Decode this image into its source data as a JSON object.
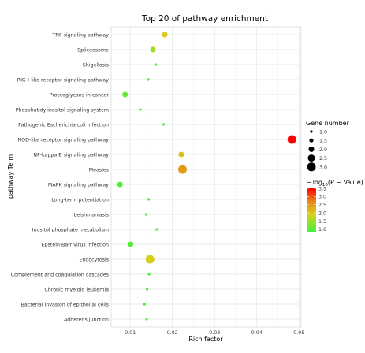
{
  "chart_data": {
    "type": "scatter",
    "title": "Top 20 of pathway enrichment",
    "xlabel": "Rich factor",
    "ylabel": "pathway Term",
    "xlim": [
      0.0055,
      0.0505
    ],
    "x_ticks": [
      "0.01",
      "0.02",
      "0.03",
      "0.04",
      "0.05"
    ],
    "x_tick_values": [
      0.01,
      0.02,
      0.03,
      0.04,
      0.05
    ],
    "grid": true,
    "points": [
      {
        "term": "TNF signaling pathway",
        "rich_factor": 0.0182,
        "gene_number": 2,
        "neg_log10_p": 2.0
      },
      {
        "term": "Spliceosome",
        "rich_factor": 0.0154,
        "gene_number": 2,
        "neg_log10_p": 1.5
      },
      {
        "term": "Shigellosis",
        "rich_factor": 0.0161,
        "gene_number": 1,
        "neg_log10_p": 0.9
      },
      {
        "term": "RIG-I-like receptor signaling pathway",
        "rich_factor": 0.0143,
        "gene_number": 1,
        "neg_log10_p": 0.85
      },
      {
        "term": "Proteoglycans in cancer",
        "rich_factor": 0.0088,
        "gene_number": 2,
        "neg_log10_p": 1.1
      },
      {
        "term": "Phosphatidylinositol signaling system",
        "rich_factor": 0.0124,
        "gene_number": 1,
        "neg_log10_p": 0.8
      },
      {
        "term": "Pathogenic Escherichia coli infection",
        "rich_factor": 0.0179,
        "gene_number": 1,
        "neg_log10_p": 0.9
      },
      {
        "term": "NOD-like receptor signaling pathway",
        "rich_factor": 0.0483,
        "gene_number": 3,
        "neg_log10_p": 3.5
      },
      {
        "term": "NF-kappa B signaling pathway",
        "rich_factor": 0.0221,
        "gene_number": 2,
        "neg_log10_p": 2.1
      },
      {
        "term": "Measles",
        "rich_factor": 0.0224,
        "gene_number": 3,
        "neg_log10_p": 2.5
      },
      {
        "term": "MAPK signaling pathway",
        "rich_factor": 0.0076,
        "gene_number": 2,
        "neg_log10_p": 0.9
      },
      {
        "term": "Long-term potentiation",
        "rich_factor": 0.0144,
        "gene_number": 1,
        "neg_log10_p": 0.85
      },
      {
        "term": "Leishmaniasis",
        "rich_factor": 0.0138,
        "gene_number": 1,
        "neg_log10_p": 0.85
      },
      {
        "term": "Inositol phosphate metabolism",
        "rich_factor": 0.0163,
        "gene_number": 1,
        "neg_log10_p": 0.9
      },
      {
        "term": "Epstein-Barr virus infection",
        "rich_factor": 0.0101,
        "gene_number": 2,
        "neg_log10_p": 1.0
      },
      {
        "term": "Endocytosis",
        "rich_factor": 0.0147,
        "gene_number": 3,
        "neg_log10_p": 1.9
      },
      {
        "term": "Complement and coagulation cascades",
        "rich_factor": 0.0145,
        "gene_number": 1,
        "neg_log10_p": 0.85
      },
      {
        "term": "Chronic myeloid leukemia",
        "rich_factor": 0.014,
        "gene_number": 1,
        "neg_log10_p": 0.85
      },
      {
        "term": "Bacterial invasion of epithelial cells",
        "rich_factor": 0.0134,
        "gene_number": 1,
        "neg_log10_p": 0.85
      },
      {
        "term": "Adherens junction",
        "rich_factor": 0.0139,
        "gene_number": 1,
        "neg_log10_p": 0.85
      }
    ],
    "legend_size": {
      "title": "Gene number",
      "items": [
        {
          "label": "1.0",
          "value": 1.0
        },
        {
          "label": "1.5",
          "value": 1.5
        },
        {
          "label": "2.0",
          "value": 2.0
        },
        {
          "label": "2.5",
          "value": 2.5
        },
        {
          "label": "3.0",
          "value": 3.0
        }
      ]
    },
    "legend_color": {
      "title": "− log10(P − Value)",
      "min": 0.8,
      "max": 3.5,
      "ticks": [
        "3.5",
        "3.0",
        "2.5",
        "2.0",
        "1.5",
        "1.0"
      ],
      "tick_values": [
        3.5,
        3.0,
        2.5,
        2.0,
        1.5,
        1.0
      ],
      "low_color": "#3cf23c",
      "high_color": "#ff0000"
    },
    "legend_placement": "right"
  }
}
